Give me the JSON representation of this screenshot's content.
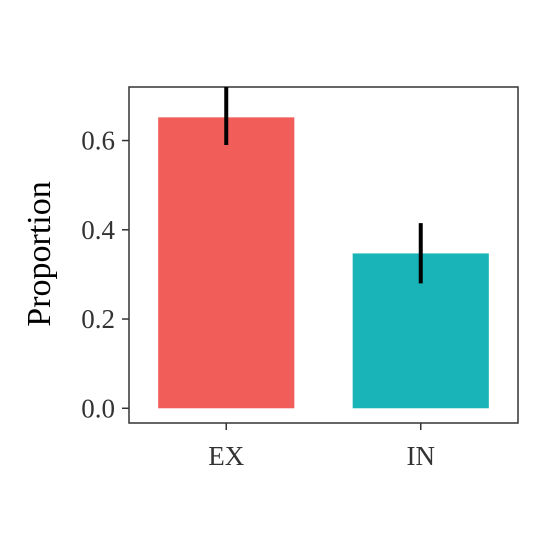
{
  "chart_data": {
    "type": "bar",
    "title": "",
    "xlabel": "",
    "ylabel": "Proportion",
    "categories": [
      "EX",
      "IN"
    ],
    "values": [
      0.652,
      0.347
    ],
    "error_low": [
      0.59,
      0.28
    ],
    "error_high": [
      0.72,
      0.415
    ],
    "colors": [
      "#F15E5A",
      "#18B4B8"
    ],
    "ylim": [
      -0.033,
      0.72
    ],
    "yticks": [
      0.0,
      0.2,
      0.4,
      0.6
    ],
    "ytick_labels": [
      "0.0",
      "0.2",
      "0.4",
      "0.6"
    ],
    "grid": false,
    "legend": "none",
    "error_bar_color": "#000000",
    "panel_border_color": "#333333"
  }
}
